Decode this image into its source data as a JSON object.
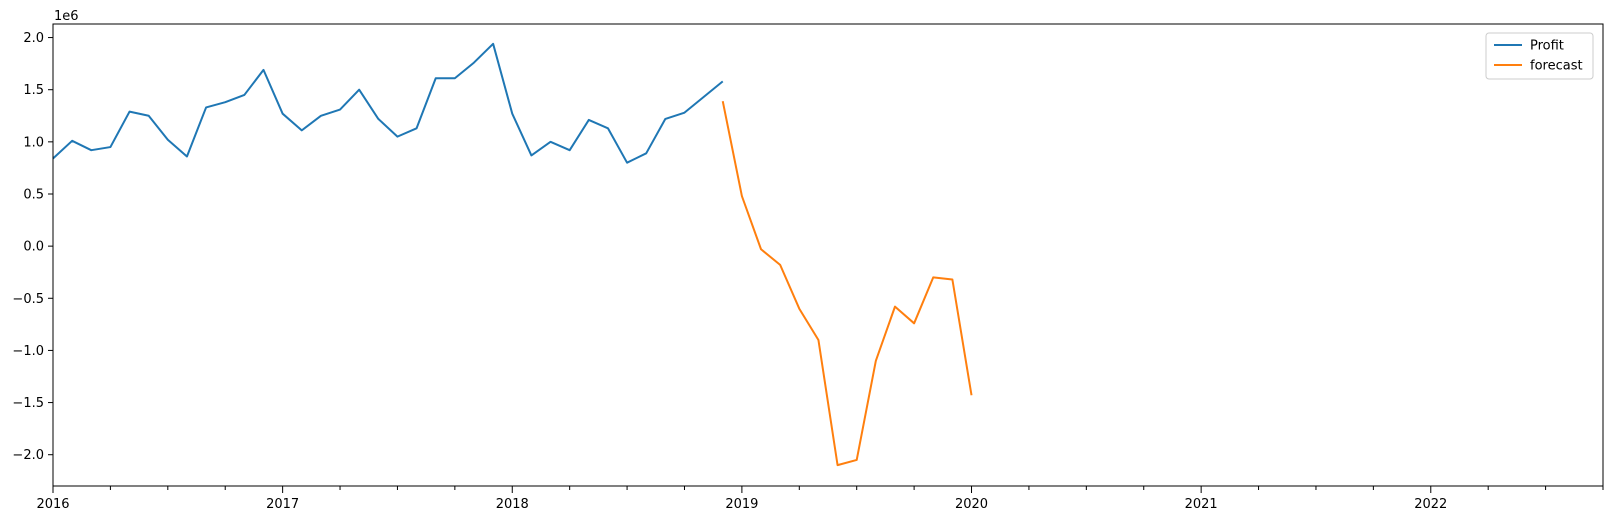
{
  "chart_data": {
    "type": "line",
    "title": "",
    "xlabel": "",
    "ylabel": "",
    "y_scale_label": "1e6",
    "xlim": [
      "2016-01-01",
      "2022-10-01"
    ],
    "ylim": [
      -2.3,
      2.13
    ],
    "x_ticks": [
      "2016",
      "2017",
      "2018",
      "2019",
      "2020",
      "2021",
      "2022"
    ],
    "y_ticks": [
      "−2.0",
      "−1.5",
      "−1.0",
      "−0.5",
      "0.0",
      "0.5",
      "1.0",
      "1.5",
      "2.0"
    ],
    "legend_position": "top-right",
    "grid": false,
    "series": [
      {
        "name": "Profit",
        "color": "#1f77b4",
        "x": [
          "2016-01",
          "2016-02",
          "2016-03",
          "2016-04",
          "2016-05",
          "2016-06",
          "2016-07",
          "2016-08",
          "2016-09",
          "2016-10",
          "2016-11",
          "2016-12",
          "2017-01",
          "2017-02",
          "2017-03",
          "2017-04",
          "2017-05",
          "2017-06",
          "2017-07",
          "2017-08",
          "2017-09",
          "2017-10",
          "2017-11",
          "2017-12",
          "2018-01",
          "2018-02",
          "2018-03",
          "2018-04",
          "2018-05",
          "2018-06",
          "2018-07",
          "2018-08",
          "2018-09",
          "2018-10",
          "2018-11",
          "2018-12"
        ],
        "values": [
          0.84,
          1.01,
          0.92,
          0.95,
          1.29,
          1.25,
          1.02,
          0.86,
          1.33,
          1.38,
          1.45,
          1.69,
          1.27,
          1.11,
          1.25,
          1.31,
          1.5,
          1.22,
          1.05,
          1.13,
          1.61,
          1.61,
          1.76,
          1.94,
          1.27,
          0.87,
          1.0,
          0.92,
          1.21,
          1.13,
          0.8,
          0.89,
          1.22,
          1.28,
          1.43,
          1.58
        ]
      },
      {
        "name": "forecast",
        "color": "#ff7f0e",
        "x": [
          "2018-12",
          "2019-01",
          "2019-02",
          "2019-03",
          "2019-04",
          "2019-05",
          "2019-06",
          "2019-07",
          "2019-08",
          "2019-09",
          "2019-10",
          "2019-11",
          "2019-12",
          "2020-01"
        ],
        "values": [
          1.39,
          0.48,
          -0.03,
          -0.18,
          -0.6,
          -0.9,
          -2.1,
          -2.05,
          -1.1,
          -0.58,
          -0.74,
          -0.3,
          -0.32,
          -1.43
        ]
      }
    ]
  }
}
